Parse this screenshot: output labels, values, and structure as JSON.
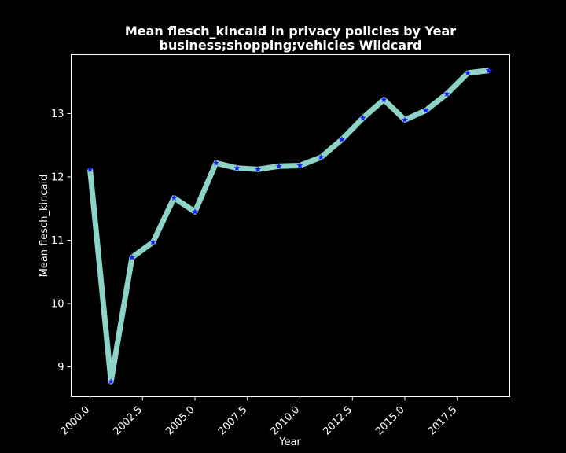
{
  "colors": {
    "background": "#000000",
    "foreground": "#ffffff",
    "line": "#8dd3c7",
    "marker": "#1a1aff"
  },
  "chart_data": {
    "type": "line",
    "title": "Mean flesch_kincaid in privacy policies by Year",
    "subtitle": "business;shopping;vehicles Wildcard",
    "xlabel": "Year",
    "ylabel": "Mean flesch_kincaid",
    "xlim": [
      1999.1,
      2020.0
    ],
    "ylim": [
      8.53,
      13.93
    ],
    "x_ticks": [
      2000.0,
      2002.5,
      2005.0,
      2007.5,
      2010.0,
      2012.5,
      2015.0,
      2017.5
    ],
    "x_tick_labels": [
      "2000.0",
      "2002.5",
      "2005.0",
      "2007.5",
      "2010.0",
      "2012.5",
      "2015.0",
      "2017.5"
    ],
    "y_ticks": [
      9,
      10,
      11,
      12,
      13
    ],
    "y_tick_labels": [
      "9",
      "10",
      "11",
      "12",
      "13"
    ],
    "grid": false,
    "marker": "star",
    "x": [
      2000,
      2001,
      2002,
      2003,
      2004,
      2005,
      2006,
      2007,
      2008,
      2009,
      2010,
      2011,
      2012,
      2013,
      2014,
      2015,
      2016,
      2017,
      2018,
      2019
    ],
    "values": [
      12.12,
      8.77,
      10.73,
      10.97,
      11.67,
      11.45,
      12.22,
      12.14,
      12.12,
      12.17,
      12.18,
      12.31,
      12.59,
      12.93,
      13.22,
      12.9,
      13.05,
      13.31,
      13.64,
      13.68
    ]
  }
}
